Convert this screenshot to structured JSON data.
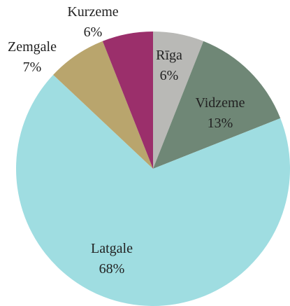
{
  "chart_data": {
    "type": "pie",
    "categories": [
      "Rīga",
      "Vidzeme",
      "Latgale",
      "Zemgale",
      "Kurzeme"
    ],
    "values": [
      6,
      13,
      68,
      7,
      6
    ],
    "value_labels": [
      "6%",
      "13%",
      "68%",
      "7%",
      "6%"
    ],
    "colors": [
      "#b9b9b6",
      "#6f8776",
      "#9fdde1",
      "#b9a56d",
      "#9b2f6b"
    ]
  }
}
